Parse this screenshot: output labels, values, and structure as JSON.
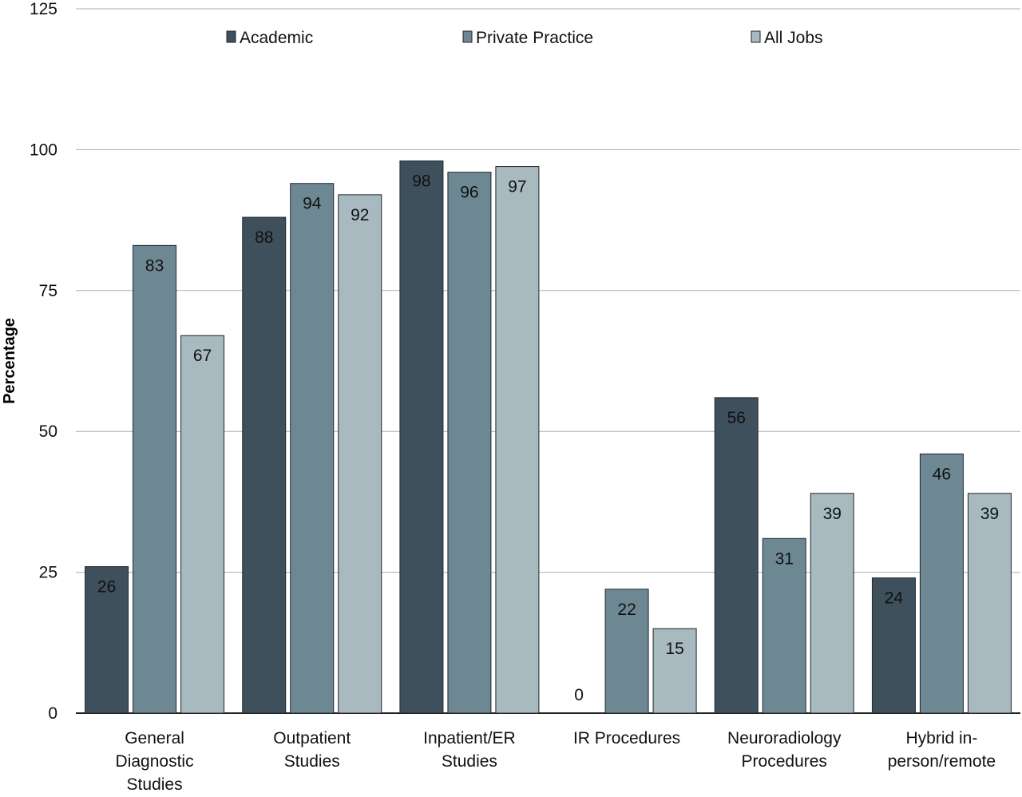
{
  "chart_data": {
    "type": "bar",
    "title": "",
    "xlabel": "",
    "ylabel": "Percentage",
    "ylim": [
      0,
      125
    ],
    "yticks": [
      0,
      25,
      50,
      75,
      100,
      125
    ],
    "grid": true,
    "legend_position": "top",
    "categories": [
      [
        "General",
        "Diagnostic",
        "Studies"
      ],
      [
        "Outpatient",
        "Studies"
      ],
      [
        "Inpatient/ER",
        "Studies"
      ],
      [
        "IR Procedures"
      ],
      [
        "Neuroradiology",
        "Procedures"
      ],
      [
        "Hybrid in-",
        "person/remote"
      ]
    ],
    "series": [
      {
        "name": "Academic",
        "color": "#3f505d",
        "values": [
          26,
          88,
          98,
          0,
          56,
          24
        ]
      },
      {
        "name": "Private Practice",
        "color": "#6e8893",
        "values": [
          83,
          94,
          96,
          22,
          31,
          46
        ]
      },
      {
        "name": "All Jobs",
        "color": "#a8b9bf",
        "values": [
          67,
          92,
          97,
          15,
          39,
          39
        ]
      }
    ]
  }
}
